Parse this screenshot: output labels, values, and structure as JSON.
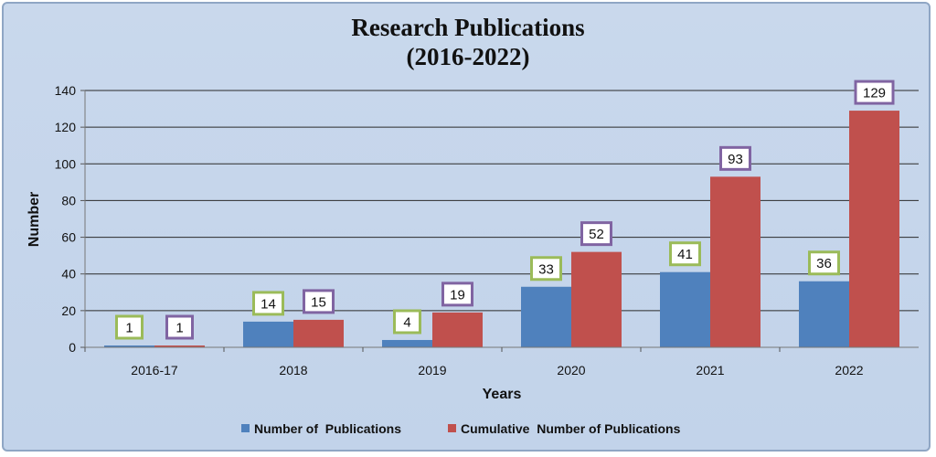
{
  "chart_data": {
    "type": "bar",
    "title": [
      "Research Publications",
      "(2016-2022)"
    ],
    "xlabel": "Years",
    "ylabel": "Number",
    "categories": [
      "2016-17",
      "2018",
      "2019",
      "2020",
      "2021",
      "2022"
    ],
    "series": [
      {
        "name": "Number of  Publications",
        "values": [
          1,
          14,
          4,
          33,
          41,
          36
        ],
        "color": "#4f81bd",
        "label_border": "#9bbb59"
      },
      {
        "name": "Cumulative  Number of Publications",
        "values": [
          1,
          15,
          19,
          52,
          93,
          129
        ],
        "color": "#c0504d",
        "label_border": "#8064a2"
      }
    ],
    "ylim": [
      0,
      140
    ],
    "yticks": [
      0,
      20,
      40,
      60,
      80,
      100,
      120,
      140
    ],
    "grid": true,
    "legend": "bottom"
  }
}
